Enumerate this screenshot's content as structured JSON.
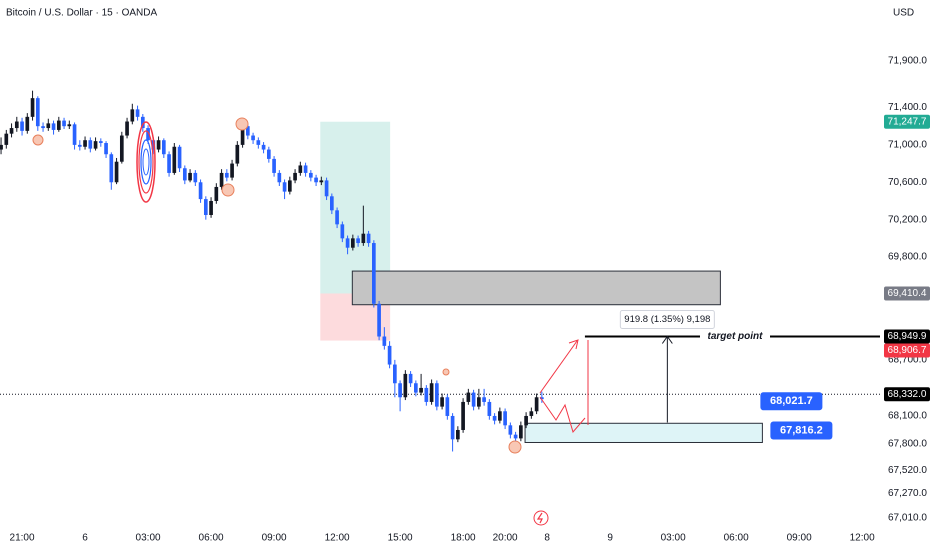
{
  "chart_data": {
    "type": "candlestick",
    "title": "Bitcoin / U.S. Dollar · 15 · OANDA",
    "currency": "USD",
    "up_color": "#131722",
    "down_color": "#2962ff",
    "grid": false,
    "xlim": [
      -4.2,
      163.4
    ],
    "ylim": [
      66880,
      72550
    ],
    "xticks": [
      {
        "value": 0,
        "label": "21:00"
      },
      {
        "value": 12,
        "label": "6"
      },
      {
        "value": 24,
        "label": "03:00"
      },
      {
        "value": 36,
        "label": "06:00"
      },
      {
        "value": 48,
        "label": "09:00"
      },
      {
        "value": 60,
        "label": "12:00"
      },
      {
        "value": 72,
        "label": "15:00"
      },
      {
        "value": 84,
        "label": "18:00"
      },
      {
        "value": 92,
        "label": "20:00"
      },
      {
        "value": 100,
        "label": "8"
      },
      {
        "value": 112,
        "label": "9"
      },
      {
        "value": 124,
        "label": "03:00"
      },
      {
        "value": 136,
        "label": "06:00"
      },
      {
        "value": 148,
        "label": "09:00"
      },
      {
        "value": 160,
        "label": "12:00"
      }
    ],
    "yticks": [
      {
        "value": 71900,
        "label": "71,900.0"
      },
      {
        "value": 71400,
        "label": "71,400.0"
      },
      {
        "value": 71000,
        "label": "71,000.0"
      },
      {
        "value": 70600,
        "label": "70,600.0"
      },
      {
        "value": 70200,
        "label": "70,200.0"
      },
      {
        "value": 69800,
        "label": "69,800.0"
      },
      {
        "value": 68700,
        "label": "68,700.0"
      },
      {
        "value": 68100,
        "label": "68,100.0"
      },
      {
        "value": 67800,
        "label": "67,800.0"
      },
      {
        "value": 67520,
        "label": "67,520.0"
      },
      {
        "value": 67270,
        "label": "67,270.0"
      },
      {
        "value": 67010,
        "label": "67,010.0"
      }
    ],
    "x": [
      -4,
      -3,
      -2,
      -1,
      0,
      1,
      2,
      3,
      4,
      5,
      6,
      7,
      8,
      9,
      10,
      11,
      12,
      13,
      14,
      15,
      16,
      17,
      18,
      19,
      20,
      21,
      22,
      23,
      24,
      25,
      26,
      27,
      28,
      29,
      30,
      31,
      32,
      33,
      34,
      35,
      36,
      37,
      38,
      39,
      40,
      41,
      42,
      43,
      44,
      45,
      46,
      47,
      48,
      49,
      50,
      51,
      52,
      53,
      54,
      55,
      56,
      57,
      58,
      59,
      60,
      61,
      62,
      63,
      64,
      65,
      66,
      67,
      68,
      69,
      70,
      71,
      72,
      73,
      74,
      75,
      76,
      77,
      78,
      79,
      80,
      81,
      82,
      83,
      84,
      85,
      86,
      87,
      88,
      89,
      90,
      91,
      92,
      93,
      94,
      95,
      96,
      97,
      98,
      99
    ],
    "ohlc": [
      [
        70950,
        71080,
        70900,
        71000
      ],
      [
        71000,
        71160,
        70960,
        71120
      ],
      [
        71120,
        71230,
        71080,
        71180
      ],
      [
        71180,
        71300,
        71140,
        71250
      ],
      [
        71250,
        71290,
        71100,
        71150
      ],
      [
        71150,
        71340,
        71120,
        71300
      ],
      [
        71300,
        71580,
        71260,
        71500
      ],
      [
        71500,
        71520,
        71150,
        71200
      ],
      [
        71200,
        71240,
        71140,
        71180
      ],
      [
        71180,
        71280,
        71150,
        71230
      ],
      [
        71230,
        71260,
        71110,
        71160
      ],
      [
        71160,
        71300,
        71140,
        71260
      ],
      [
        71260,
        71290,
        71170,
        71200
      ],
      [
        71200,
        71260,
        71170,
        71220
      ],
      [
        71220,
        71240,
        70950,
        71000
      ],
      [
        71000,
        71050,
        70940,
        70980
      ],
      [
        70980,
        71090,
        70950,
        71050
      ],
      [
        71050,
        71080,
        70920,
        70960
      ],
      [
        70960,
        71080,
        70940,
        71040
      ],
      [
        71040,
        71070,
        70980,
        71020
      ],
      [
        71020,
        71040,
        70860,
        70900
      ],
      [
        70900,
        70920,
        70520,
        70600
      ],
      [
        70600,
        70860,
        70580,
        70820
      ],
      [
        70820,
        71140,
        70800,
        71100
      ],
      [
        71100,
        71290,
        71070,
        71250
      ],
      [
        71250,
        71440,
        71220,
        71380
      ],
      [
        71380,
        71420,
        71260,
        71300
      ],
      [
        71300,
        71330,
        71140,
        71180
      ],
      [
        71180,
        71210,
        71010,
        71050
      ],
      [
        71050,
        71080,
        70900,
        70950
      ],
      [
        70950,
        71090,
        70920,
        71050
      ],
      [
        71050,
        71070,
        70860,
        70900
      ],
      [
        70900,
        70930,
        70660,
        70700
      ],
      [
        70700,
        71020,
        70680,
        70980
      ],
      [
        70980,
        71000,
        70710,
        70750
      ],
      [
        70750,
        70780,
        70580,
        70620
      ],
      [
        70620,
        70740,
        70600,
        70700
      ],
      [
        70700,
        70730,
        70560,
        70600
      ],
      [
        70600,
        70630,
        70380,
        70420
      ],
      [
        70420,
        70450,
        70200,
        70250
      ],
      [
        70250,
        70440,
        70220,
        70400
      ],
      [
        70400,
        70590,
        70370,
        70550
      ],
      [
        70550,
        70740,
        70520,
        70700
      ],
      [
        70700,
        70740,
        70610,
        70650
      ],
      [
        70650,
        70840,
        70620,
        70800
      ],
      [
        70800,
        71040,
        70770,
        71000
      ],
      [
        71000,
        71260,
        70970,
        71200
      ],
      [
        71200,
        71230,
        71060,
        71100
      ],
      [
        71100,
        71130,
        71010,
        71050
      ],
      [
        71050,
        71080,
        70960,
        71000
      ],
      [
        71000,
        71030,
        70910,
        70950
      ],
      [
        70950,
        70980,
        70810,
        70850
      ],
      [
        70850,
        70880,
        70660,
        70700
      ],
      [
        70700,
        70730,
        70560,
        70600
      ],
      [
        70600,
        70630,
        70420,
        70500
      ],
      [
        70500,
        70660,
        70470,
        70620
      ],
      [
        70620,
        70740,
        70590,
        70700
      ],
      [
        70700,
        70820,
        70670,
        70780
      ],
      [
        70780,
        70810,
        70660,
        70700
      ],
      [
        70700,
        70730,
        70610,
        70650
      ],
      [
        70650,
        70680,
        70560,
        70600
      ],
      [
        70600,
        70660,
        70570,
        70620
      ],
      [
        70620,
        70650,
        70410,
        70450
      ],
      [
        70450,
        70480,
        70260,
        70300
      ],
      [
        70300,
        70330,
        70110,
        70150
      ],
      [
        70150,
        70180,
        69960,
        70000
      ],
      [
        70000,
        70030,
        69830,
        69900
      ],
      [
        69900,
        70040,
        69870,
        70000
      ],
      [
        70000,
        70030,
        69910,
        69950
      ],
      [
        69950,
        70350,
        69920,
        70050
      ],
      [
        70050,
        70080,
        69910,
        69950
      ],
      [
        69950,
        69980,
        69260,
        69300
      ],
      [
        69300,
        69330,
        68910,
        68950
      ],
      [
        68950,
        69050,
        68810,
        68850
      ],
      [
        68850,
        68900,
        68610,
        68650
      ],
      [
        68650,
        68700,
        68300,
        68450
      ],
      [
        68450,
        68480,
        68150,
        68300
      ],
      [
        68300,
        68590,
        68270,
        68550
      ],
      [
        68550,
        68580,
        68410,
        68450
      ],
      [
        68450,
        68480,
        68310,
        68350
      ],
      [
        68350,
        68550,
        68320,
        68400
      ],
      [
        68400,
        68430,
        68210,
        68250
      ],
      [
        68250,
        68490,
        68220,
        68450
      ],
      [
        68450,
        68480,
        68160,
        68200
      ],
      [
        68200,
        68340,
        68170,
        68300
      ],
      [
        68300,
        68330,
        68060,
        68100
      ],
      [
        68100,
        68130,
        67720,
        67850
      ],
      [
        67850,
        67990,
        67820,
        67950
      ],
      [
        67950,
        68290,
        67920,
        68250
      ],
      [
        68250,
        68390,
        68220,
        68350
      ],
      [
        68350,
        68380,
        68160,
        68200
      ],
      [
        68200,
        68390,
        68170,
        68300
      ],
      [
        68300,
        68390,
        68210,
        68250
      ],
      [
        68250,
        68280,
        68060,
        68100
      ],
      [
        68100,
        68130,
        68010,
        68050
      ],
      [
        68050,
        68190,
        68020,
        68150
      ],
      [
        68150,
        68180,
        67960,
        68000
      ],
      [
        68000,
        68030,
        67860,
        67900
      ],
      [
        67900,
        67930,
        67770,
        67860
      ],
      [
        67860,
        68040,
        67830,
        68000
      ],
      [
        68000,
        68140,
        67970,
        68100
      ],
      [
        68100,
        68190,
        68070,
        68150
      ],
      [
        68150,
        68340,
        68120,
        68300
      ],
      [
        68300,
        68360,
        68240,
        68280
      ]
    ],
    "position": {
      "x": [
        56.8,
        70.1
      ],
      "profit": 71247.7,
      "entry": 69410.4,
      "stop": 68906.7
    },
    "zones": [
      {
        "x": [
          62.9,
          133.0
        ],
        "top": 69650,
        "bottom": 69290,
        "color": "#c4c4c4"
      },
      {
        "x": [
          95.8,
          141.0
        ],
        "top": 68021.7,
        "bottom": 67816.2,
        "color": "#def4f7",
        "labels": [
          "68,021.7",
          "67,816.2"
        ]
      }
    ],
    "target": {
      "x": 107.2,
      "value": 68949.9,
      "label": "target point"
    },
    "measure": {
      "x": 122.9,
      "from": 68030.1,
      "to": 68949.9,
      "label": "919.8 (1.35%) 9,198"
    },
    "last_price": 68332.0,
    "price_labels": [
      {
        "value": 71247.7,
        "label": "71,247.7",
        "color": "#22ab94"
      },
      {
        "value": 69410.4,
        "label": "69,410.4",
        "color": "#787b86"
      },
      {
        "value": 68949.9,
        "label": "68,949.9",
        "color": "#000000"
      },
      {
        "value": 68906.7,
        "label": "68,906.7",
        "color": "#f23645"
      },
      {
        "value": 68332.0,
        "label": "68,332.0",
        "color": "#000000"
      }
    ]
  }
}
